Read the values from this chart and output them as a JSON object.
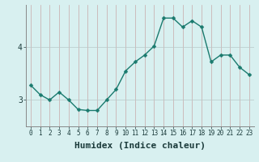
{
  "x": [
    0,
    1,
    2,
    3,
    4,
    5,
    6,
    7,
    8,
    9,
    10,
    11,
    12,
    13,
    14,
    15,
    16,
    17,
    18,
    19,
    20,
    21,
    22,
    23
  ],
  "y": [
    3.28,
    3.1,
    3.0,
    3.15,
    3.0,
    2.82,
    2.8,
    2.8,
    3.0,
    3.2,
    3.55,
    3.72,
    3.85,
    4.02,
    4.55,
    4.55,
    4.38,
    4.5,
    4.38,
    3.72,
    3.85,
    3.85,
    3.62,
    3.48
  ],
  "line_color": "#1a7a6e",
  "marker": "D",
  "marker_size": 2.5,
  "background_color": "#d8f0f0",
  "grid_vertical_color": "#c8a8a8",
  "grid_horizontal_color": "#b8c8c8",
  "xlabel": "Humidex (Indice chaleur)",
  "xlabel_fontsize": 8,
  "yticks": [
    3,
    4
  ],
  "ylim": [
    2.5,
    4.8
  ],
  "xlim": [
    -0.5,
    23.5
  ],
  "tick_fontsize": 7,
  "line_width": 1.0
}
